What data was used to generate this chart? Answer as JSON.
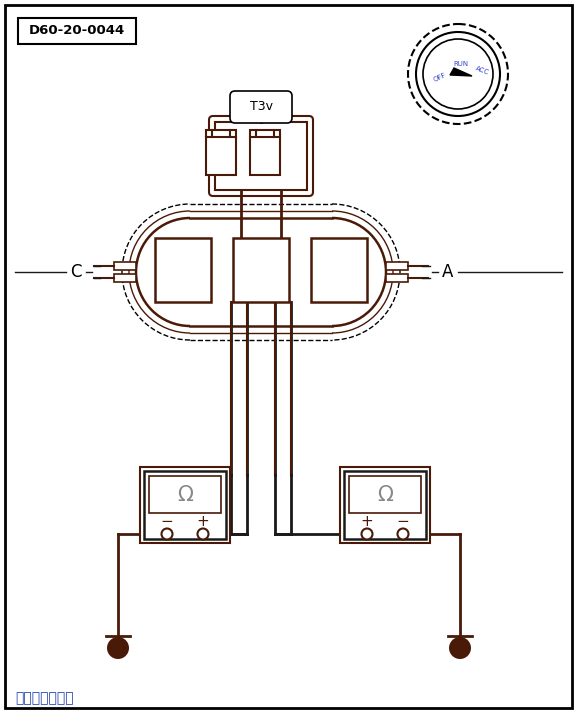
{
  "bg_color": "#ffffff",
  "border_color": "#000000",
  "title_label": "D60-20-0044",
  "connector_label": "T3v",
  "label_C": "C",
  "label_A": "A",
  "brown": "#4a1a08",
  "dark_line": "#1a1a1a",
  "gray": "#888888",
  "blue_label": "#3344cc",
  "watermark": "汽车维修技术网",
  "fig_w": 5.77,
  "fig_h": 7.13,
  "dpi": 100
}
